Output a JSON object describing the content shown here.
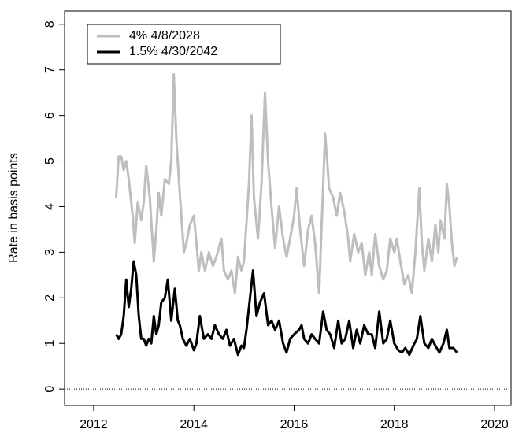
{
  "chart_data": {
    "type": "line",
    "y_label": "Rate in basis points",
    "xlim": [
      2011.42,
      2020.33
    ],
    "xticks": [
      2012,
      2014,
      2016,
      2018,
      2020
    ],
    "ylim": [
      -0.36,
      8.29
    ],
    "yticks": [
      0,
      1,
      2,
      3,
      4,
      5,
      6,
      7,
      8
    ],
    "hline": 0,
    "legend": "top-left",
    "series": [
      {
        "name": "4% 4/8/2028",
        "color": "#bebebe",
        "x": [
          2012.45,
          2012.5,
          2012.55,
          2012.6,
          2012.65,
          2012.7,
          2012.78,
          2012.82,
          2012.88,
          2012.95,
          2013.0,
          2013.05,
          2013.12,
          2013.2,
          2013.25,
          2013.3,
          2013.35,
          2013.42,
          2013.5,
          2013.55,
          2013.6,
          2013.65,
          2013.7,
          2013.75,
          2013.8,
          2013.85,
          2013.92,
          2014.0,
          2014.05,
          2014.1,
          2014.15,
          2014.22,
          2014.3,
          2014.38,
          2014.45,
          2014.55,
          2014.6,
          2014.68,
          2014.75,
          2014.82,
          2014.88,
          2014.95,
          2015.0,
          2015.1,
          2015.15,
          2015.2,
          2015.28,
          2015.35,
          2015.42,
          2015.48,
          2015.55,
          2015.62,
          2015.7,
          2015.78,
          2015.85,
          2015.92,
          2016.0,
          2016.05,
          2016.12,
          2016.2,
          2016.28,
          2016.35,
          2016.42,
          2016.5,
          2016.55,
          2016.62,
          2016.7,
          2016.78,
          2016.85,
          2016.92,
          2017.0,
          2017.08,
          2017.12,
          2017.2,
          2017.28,
          2017.35,
          2017.42,
          2017.5,
          2017.55,
          2017.62,
          2017.7,
          2017.78,
          2017.85,
          2017.92,
          2018.0,
          2018.05,
          2018.12,
          2018.2,
          2018.28,
          2018.35,
          2018.42,
          2018.5,
          2018.55,
          2018.6,
          2018.68,
          2018.75,
          2018.82,
          2018.88,
          2018.92,
          2019.0,
          2019.05,
          2019.1,
          2019.15,
          2019.2,
          2019.25
        ],
        "values": [
          4.2,
          5.1,
          5.1,
          4.8,
          5.0,
          4.6,
          3.8,
          3.2,
          4.1,
          3.7,
          4.1,
          4.9,
          4.2,
          2.8,
          3.5,
          4.3,
          3.8,
          4.6,
          4.5,
          5.0,
          6.9,
          5.5,
          4.6,
          3.8,
          3.0,
          3.2,
          3.6,
          3.8,
          3.2,
          2.6,
          3.0,
          2.6,
          3.0,
          2.7,
          2.9,
          3.3,
          2.6,
          2.4,
          2.6,
          2.1,
          2.9,
          2.6,
          2.8,
          4.5,
          6.0,
          4.2,
          3.3,
          4.5,
          6.5,
          5.0,
          4.0,
          3.1,
          4.0,
          3.3,
          2.9,
          3.3,
          3.8,
          4.4,
          3.5,
          2.7,
          3.5,
          3.8,
          3.2,
          2.1,
          3.6,
          5.6,
          4.4,
          4.2,
          3.8,
          4.3,
          3.9,
          3.3,
          2.8,
          3.4,
          3.0,
          3.2,
          2.5,
          3.0,
          2.5,
          3.4,
          2.7,
          2.4,
          2.6,
          3.3,
          3.0,
          3.3,
          2.8,
          2.3,
          2.5,
          2.1,
          3.0,
          4.4,
          3.2,
          2.6,
          3.3,
          2.8,
          3.6,
          3.0,
          3.7,
          3.3,
          4.5,
          4.0,
          3.2,
          2.7,
          2.9
        ]
      },
      {
        "name": "1.5% 4/30/2042",
        "color": "#000000",
        "x": [
          2012.45,
          2012.5,
          2012.55,
          2012.6,
          2012.65,
          2012.7,
          2012.75,
          2012.8,
          2012.85,
          2012.9,
          2012.95,
          2013.0,
          2013.05,
          2013.1,
          2013.15,
          2013.2,
          2013.25,
          2013.3,
          2013.35,
          2013.42,
          2013.48,
          2013.55,
          2013.62,
          2013.68,
          2013.72,
          2013.78,
          2013.85,
          2013.92,
          2014.0,
          2014.05,
          2014.12,
          2014.2,
          2014.28,
          2014.35,
          2014.42,
          2014.5,
          2014.58,
          2014.65,
          2014.72,
          2014.8,
          2014.88,
          2014.95,
          2015.0,
          2015.05,
          2015.12,
          2015.18,
          2015.25,
          2015.32,
          2015.4,
          2015.48,
          2015.55,
          2015.62,
          2015.7,
          2015.78,
          2015.85,
          2015.92,
          2016.0,
          2016.1,
          2016.15,
          2016.2,
          2016.28,
          2016.35,
          2016.42,
          2016.5,
          2016.58,
          2016.65,
          2016.72,
          2016.8,
          2016.88,
          2016.95,
          2017.02,
          2017.1,
          2017.18,
          2017.25,
          2017.32,
          2017.4,
          2017.48,
          2017.55,
          2017.62,
          2017.7,
          2017.78,
          2017.85,
          2017.92,
          2018.0,
          2018.08,
          2018.15,
          2018.22,
          2018.3,
          2018.38,
          2018.45,
          2018.52,
          2018.6,
          2018.68,
          2018.75,
          2018.82,
          2018.9,
          2018.98,
          2019.05,
          2019.1,
          2019.18,
          2019.25
        ],
        "values": [
          1.2,
          1.1,
          1.2,
          1.6,
          2.4,
          1.8,
          2.2,
          2.8,
          2.5,
          1.6,
          1.1,
          1.1,
          0.95,
          1.1,
          1.0,
          1.6,
          1.2,
          1.4,
          1.9,
          2.0,
          2.4,
          1.5,
          2.2,
          1.5,
          1.4,
          1.1,
          0.95,
          1.1,
          0.85,
          1.0,
          1.6,
          1.1,
          1.2,
          1.1,
          1.4,
          1.2,
          1.1,
          1.3,
          0.95,
          1.1,
          0.75,
          0.95,
          0.9,
          1.3,
          2.0,
          2.6,
          1.6,
          1.9,
          2.1,
          1.4,
          1.5,
          1.3,
          1.5,
          1.0,
          0.8,
          1.1,
          1.2,
          1.3,
          1.4,
          1.1,
          1.0,
          1.2,
          1.1,
          1.0,
          1.7,
          1.3,
          1.2,
          0.9,
          1.5,
          1.0,
          1.1,
          1.5,
          0.9,
          1.3,
          1.0,
          1.4,
          1.2,
          1.2,
          0.9,
          1.7,
          1.0,
          1.1,
          1.5,
          1.0,
          0.85,
          0.8,
          0.9,
          0.75,
          0.95,
          1.1,
          1.6,
          1.0,
          0.9,
          1.1,
          0.95,
          0.8,
          1.0,
          1.3,
          0.9,
          0.9,
          0.8
        ]
      }
    ]
  }
}
